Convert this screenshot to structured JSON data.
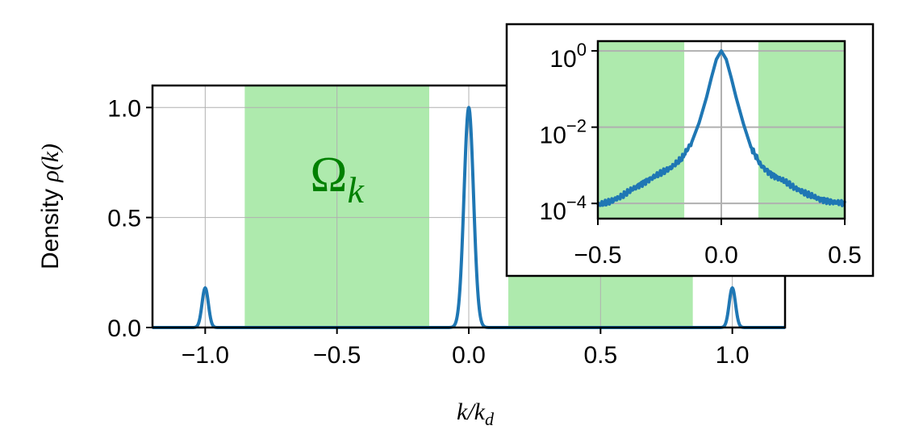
{
  "chart_data": [
    {
      "type": "line",
      "role": "main",
      "xlabel": {
        "prefix": "k",
        "slash": "/",
        "base": "k",
        "sub": "d"
      },
      "ylabel": {
        "text": "Density ",
        "func": "ρ(",
        "var": "k",
        "close": ")"
      },
      "xlim": [
        -1.2,
        1.2
      ],
      "ylim": [
        0,
        1.1
      ],
      "xticks": [
        -1.0,
        -0.5,
        0.0,
        0.5,
        1.0
      ],
      "xtick_labels": [
        "−1.0",
        "−0.5",
        "0.0",
        "0.5",
        "1.0"
      ],
      "yticks": [
        0.0,
        0.5,
        1.0
      ],
      "ytick_labels": [
        "0.0",
        "0.5",
        "1.0"
      ],
      "grid": true,
      "shaded_regions": [
        [
          -0.85,
          -0.15
        ],
        [
          0.15,
          0.85
        ]
      ],
      "annotation": {
        "text": "Ω",
        "sub": "k",
        "x": -0.5,
        "y": 0.62,
        "color": "#008000"
      },
      "peaks": [
        {
          "center": -1.0,
          "height": 0.18,
          "width": 0.012
        },
        {
          "center": 0.0,
          "height": 1.0,
          "width": 0.018
        },
        {
          "center": 1.0,
          "height": 0.18,
          "width": 0.012
        }
      ],
      "series": [
        {
          "color": "#1f77b4"
        }
      ]
    },
    {
      "type": "line",
      "role": "inset",
      "yscale": "log",
      "xlim": [
        -0.5,
        0.5
      ],
      "ylim": [
        4e-05,
        1.8
      ],
      "xticks": [
        -0.5,
        0.0,
        0.5
      ],
      "xtick_labels": [
        "−0.5",
        "0.0",
        "0.5"
      ],
      "yticks": [
        {
          "value": 1,
          "base": "10",
          "exp": "0"
        },
        {
          "value": 0.01,
          "base": "10",
          "exp": "−2"
        },
        {
          "value": 0.0001,
          "base": "10",
          "exp": "−4"
        }
      ],
      "grid": true,
      "shaded_regions": [
        [
          -0.5,
          -0.15
        ],
        [
          0.15,
          0.5
        ]
      ],
      "series": [
        {
          "color": "#1f77b4",
          "x": [
            -0.5,
            -0.45,
            -0.4,
            -0.35,
            -0.3,
            -0.25,
            -0.2,
            -0.16,
            -0.12,
            -0.09,
            -0.06,
            -0.04,
            -0.02,
            0.0,
            0.02,
            0.04,
            0.06,
            0.09,
            0.12,
            0.16,
            0.2,
            0.25,
            0.3,
            0.35,
            0.4,
            0.45,
            0.5
          ],
          "y": [
            9e-05,
            0.00011,
            0.00016,
            0.00026,
            0.0004,
            0.0006,
            0.0009,
            0.0015,
            0.004,
            0.013,
            0.06,
            0.2,
            0.6,
            1.0,
            0.6,
            0.2,
            0.06,
            0.012,
            0.003,
            0.001,
            0.0006,
            0.0004,
            0.00025,
            0.00017,
            0.00013,
            0.00011,
            0.0001
          ]
        }
      ]
    }
  ],
  "colors": {
    "line": "#1f77b4",
    "shade": "#aeeaad",
    "grid": "#b0b0b0",
    "annotation": "#008000"
  }
}
